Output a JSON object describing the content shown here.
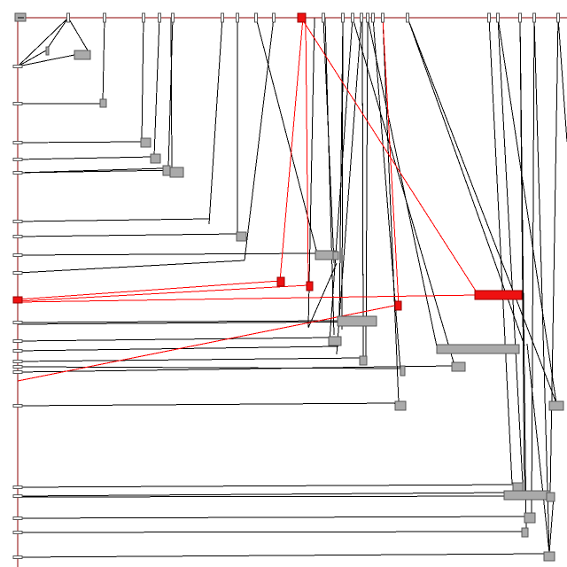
{
  "colors": {
    "background": "#ffffff",
    "line": "#000000",
    "highlight": "#ff0000",
    "highlight_fill": "#ee1111",
    "node_fill": "#aaaaaa",
    "node_stroke": "#555555",
    "axis": "#8b0000"
  },
  "diagram": {
    "type": "adjacency-matrix-link-diagram",
    "labels_visible": false,
    "highlighted_nodes_count": 5
  }
}
